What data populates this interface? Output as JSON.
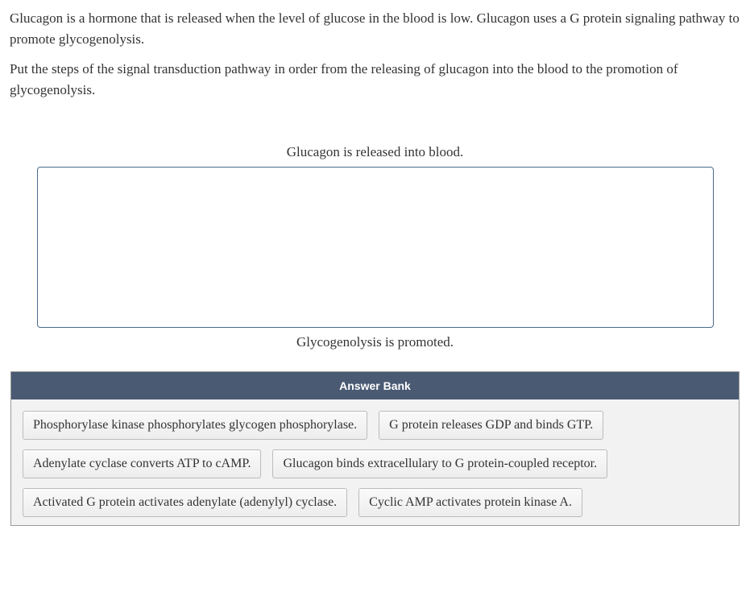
{
  "question": {
    "paragraph1": "Glucagon is a hormone that is released when the level of glucose in the blood is low. Glucagon uses a G protein signaling pathway to promote glycogenolysis.",
    "paragraph2": "Put the steps of the signal transduction pathway in order from the releasing of glucagon into the blood to the promotion of glycogenolysis."
  },
  "sequence": {
    "topLabel": "Glucagon is released into blood.",
    "bottomLabel": "Glycogenolysis is promoted."
  },
  "answerBank": {
    "title": "Answer Bank",
    "items": [
      "Phosphorylase kinase phosphorylates glycogen phosphorylase.",
      "G protein releases GDP and binds GTP.",
      "Adenylate cyclase converts ATP to cAMP.",
      "Glucagon binds extracellulary to G protein-coupled receptor.",
      "Activated G protein activates adenylate (adenylyl) cyclase.",
      "Cyclic AMP activates protein kinase A."
    ]
  },
  "colors": {
    "bankHeaderBg": "#4a5a73",
    "dropBorder": "#4a6a8a",
    "itemBorder": "#bcbcbc",
    "text": "#333333"
  }
}
